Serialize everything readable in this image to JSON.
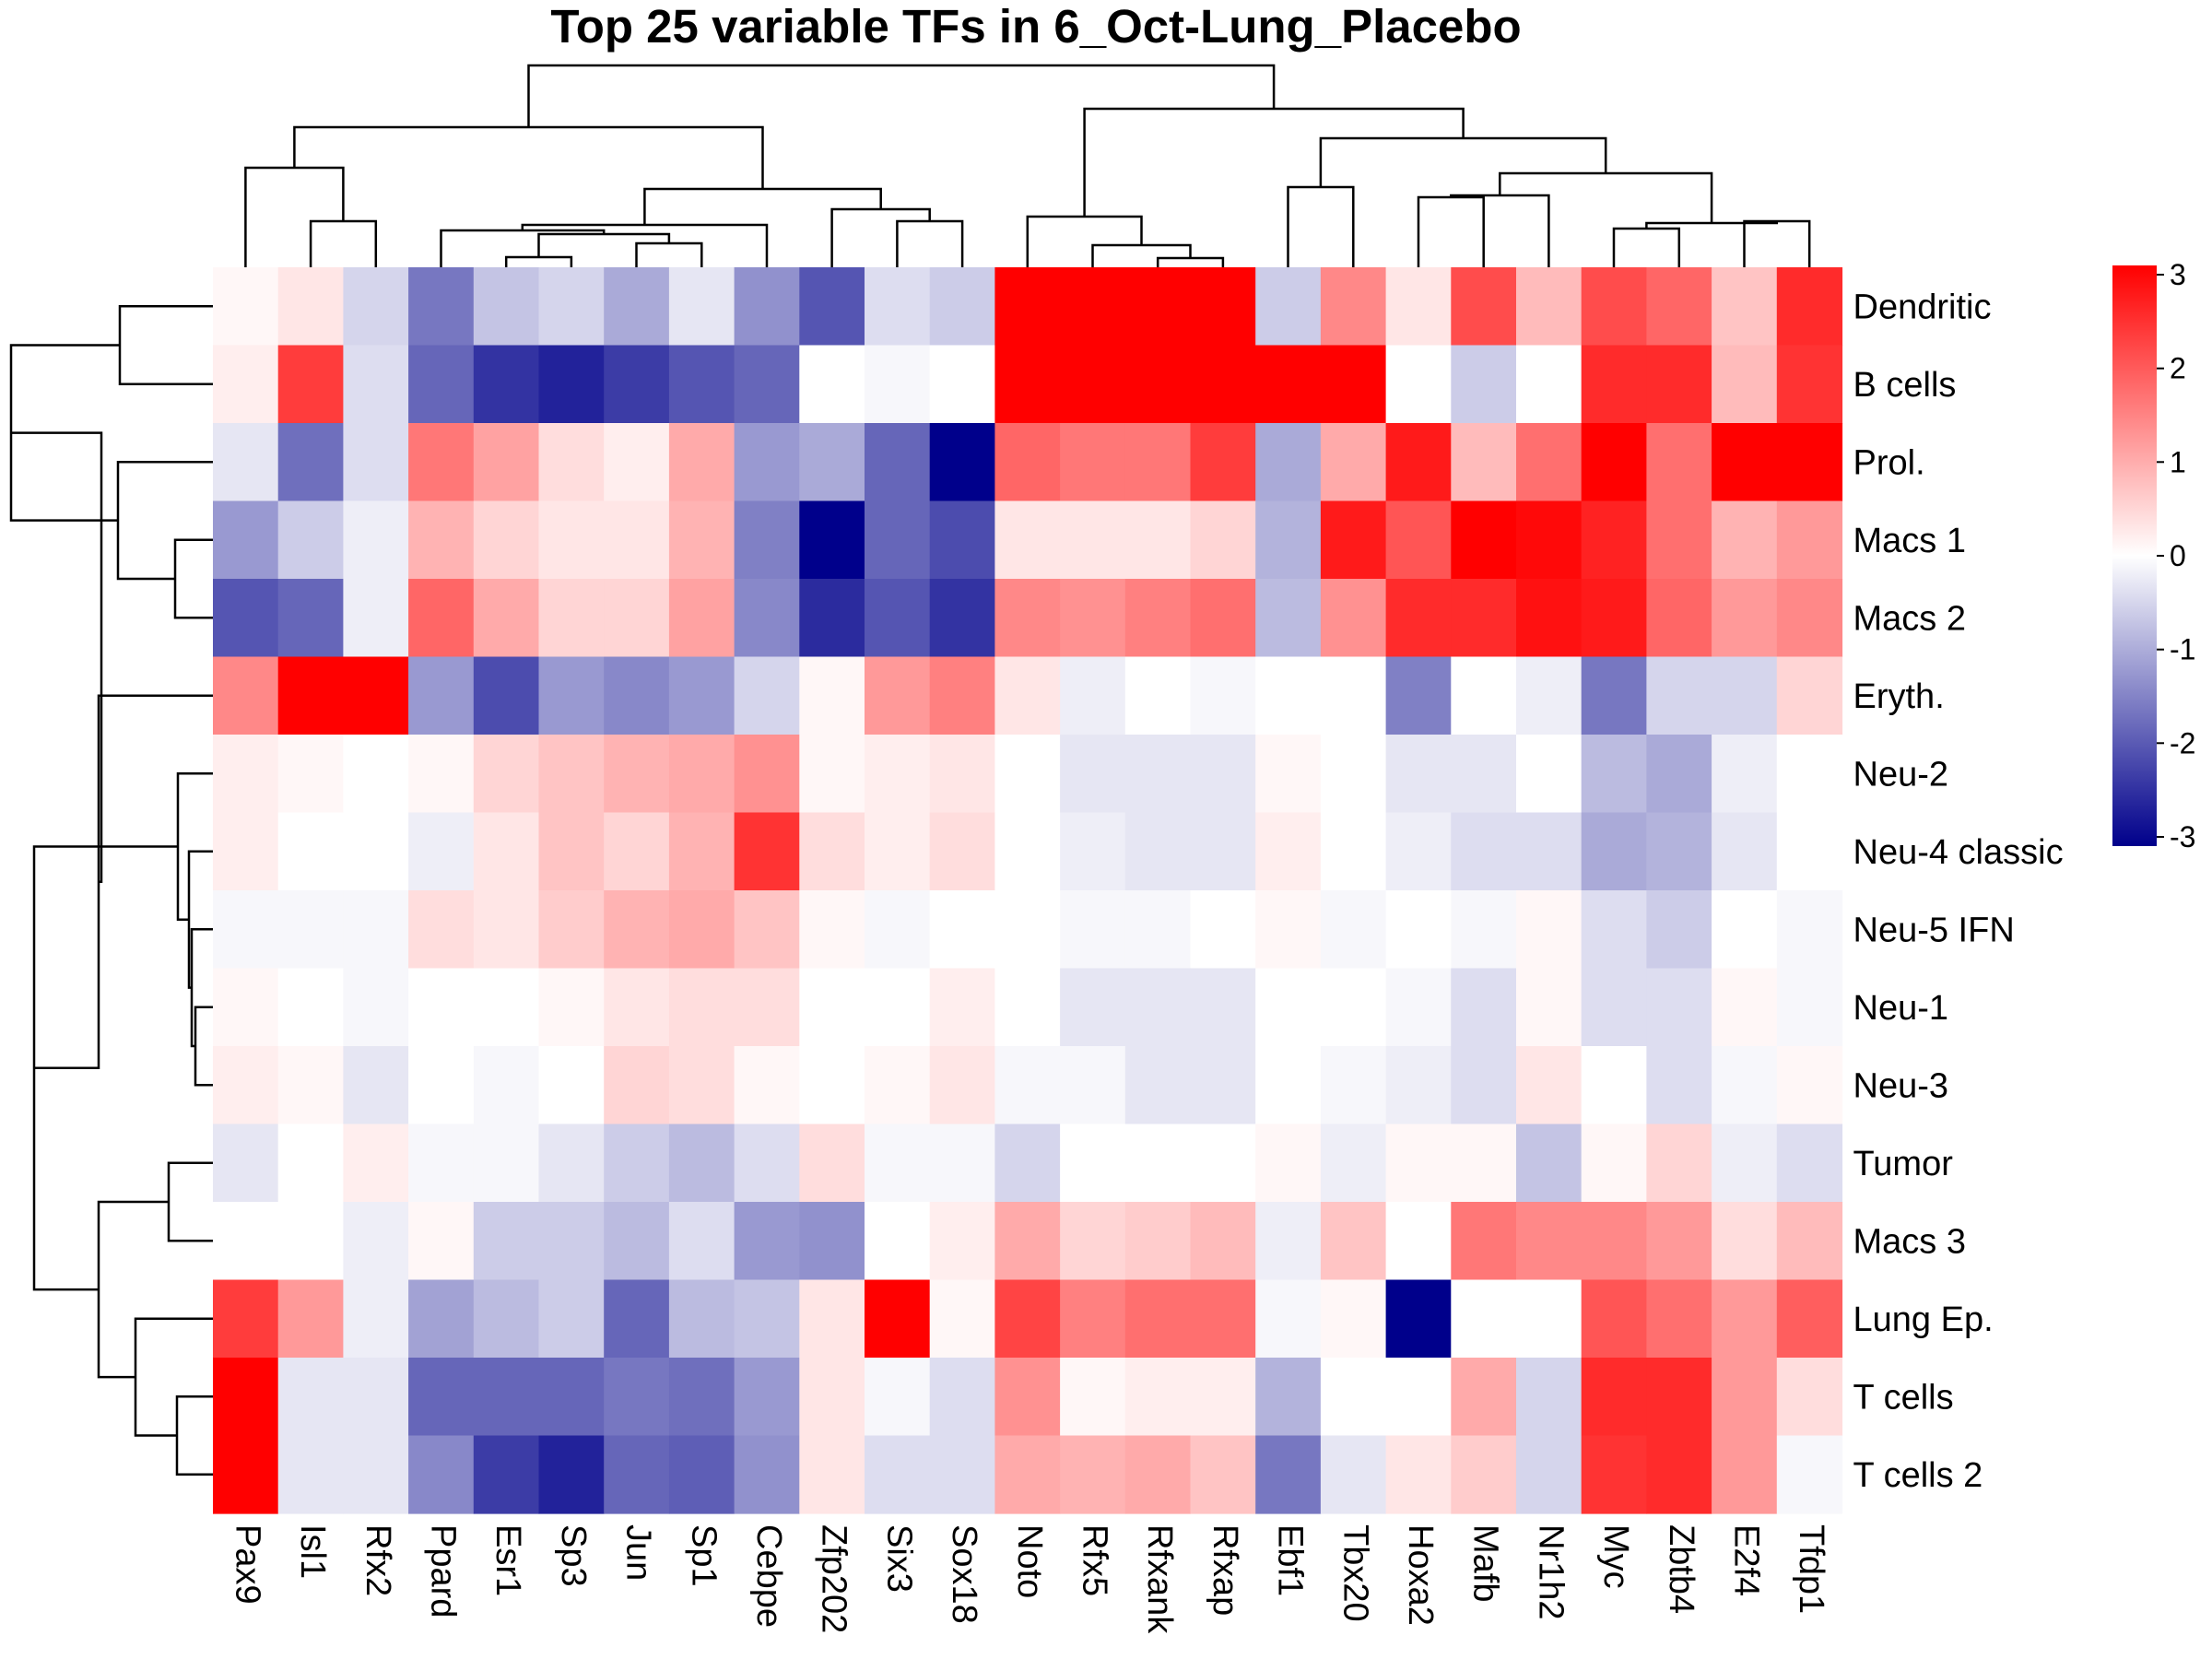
{
  "chart_data": {
    "type": "heatmap",
    "title": "Top 25 variable TFs in 6_Oct-Lung_Placebo",
    "rows": [
      "Dendritic",
      "B cells",
      "Prol.",
      "Macs 1",
      "Macs 2",
      "Eryth.",
      "Neu-2",
      "Neu-4 classic",
      "Neu-5 IFN",
      "Neu-1",
      "Neu-3",
      "Tumor",
      "Macs 3",
      "Lung Ep.",
      "T cells",
      "T cells 2"
    ],
    "columns": [
      "Pax9",
      "Isl1",
      "Rfx2",
      "Ppard",
      "Esr1",
      "Sp3",
      "Jun",
      "Sp1",
      "Cebpe",
      "Zfp202",
      "Six3",
      "Sox18",
      "Noto",
      "Rfx5",
      "Rfxank",
      "Rfxap",
      "Ebf1",
      "Tbx20",
      "Hoxa2",
      "Mafb",
      "Nr1h2",
      "Myc",
      "Zbtb4",
      "E2f4",
      "Tfdp1"
    ],
    "values": [
      [
        0.1,
        0.3,
        -0.5,
        -1.6,
        -0.7,
        -0.5,
        -1.0,
        -0.3,
        -1.3,
        -2.0,
        -0.4,
        -0.6,
        3,
        3,
        3,
        3,
        -0.6,
        1.4,
        0.3,
        2.1,
        0.8,
        2.1,
        1.8,
        0.7,
        2.5
      ],
      [
        0.2,
        2.3,
        -0.4,
        -1.8,
        -2.4,
        -2.6,
        -2.3,
        -2.0,
        -1.8,
        0.0,
        -0.1,
        0.0,
        3,
        3,
        3,
        3,
        3,
        3,
        0.0,
        -0.6,
        0.0,
        2.5,
        2.5,
        0.8,
        2.4
      ],
      [
        -0.3,
        -1.7,
        -0.4,
        1.6,
        1.1,
        0.4,
        0.2,
        1.0,
        -1.2,
        -1.0,
        -1.8,
        -3,
        1.8,
        1.6,
        1.6,
        2.3,
        -1.0,
        1.0,
        2.7,
        0.8,
        1.7,
        3,
        1.7,
        3,
        3
      ],
      [
        -1.2,
        -0.6,
        -0.2,
        0.9,
        0.5,
        0.3,
        0.3,
        0.9,
        -1.5,
        -3,
        -1.8,
        -2.1,
        0.3,
        0.3,
        0.3,
        0.5,
        -0.9,
        2.7,
        2.0,
        3,
        2.9,
        2.6,
        1.7,
        0.9,
        1.2
      ],
      [
        -2.0,
        -1.8,
        -0.2,
        1.8,
        1.0,
        0.5,
        0.5,
        1.1,
        -1.4,
        -2.5,
        -2.0,
        -2.4,
        1.4,
        1.3,
        1.5,
        1.7,
        -0.8,
        1.3,
        2.5,
        2.5,
        2.8,
        2.7,
        1.8,
        1.2,
        1.4
      ],
      [
        1.4,
        3,
        3,
        -1.2,
        -2.1,
        -1.2,
        -1.4,
        -1.2,
        -0.5,
        0.1,
        1.2,
        1.5,
        0.3,
        -0.2,
        0.0,
        -0.1,
        0.0,
        0.0,
        -1.5,
        0.0,
        -0.2,
        -1.6,
        -0.5,
        -0.5,
        0.5
      ],
      [
        0.2,
        0.1,
        0.0,
        0.1,
        0.5,
        0.7,
        0.9,
        1.0,
        1.3,
        0.1,
        0.2,
        0.3,
        0.0,
        -0.3,
        -0.3,
        -0.3,
        0.1,
        0.0,
        -0.3,
        -0.3,
        0.0,
        -0.8,
        -1.0,
        -0.2,
        0.0
      ],
      [
        0.2,
        0.0,
        0.0,
        -0.2,
        0.3,
        0.7,
        0.5,
        0.9,
        2.4,
        0.4,
        0.2,
        0.4,
        0.0,
        -0.2,
        -0.3,
        -0.3,
        0.2,
        0.0,
        -0.2,
        -0.4,
        -0.4,
        -1.0,
        -0.9,
        -0.3,
        0.0
      ],
      [
        -0.1,
        -0.1,
        -0.1,
        0.4,
        0.3,
        0.6,
        0.9,
        1.0,
        0.7,
        0.1,
        -0.1,
        0.0,
        0.0,
        -0.1,
        -0.1,
        0.0,
        0.1,
        -0.1,
        0.0,
        -0.1,
        0.1,
        -0.4,
        -0.6,
        0.0,
        -0.1
      ],
      [
        0.1,
        0.0,
        -0.1,
        0.0,
        0.0,
        0.1,
        0.3,
        0.4,
        0.4,
        0.0,
        0.0,
        0.2,
        0.0,
        -0.3,
        -0.3,
        -0.3,
        0.0,
        0.0,
        -0.1,
        -0.4,
        0.1,
        -0.4,
        -0.4,
        0.1,
        -0.1
      ],
      [
        0.2,
        0.1,
        -0.3,
        0.0,
        -0.1,
        0.0,
        0.5,
        0.4,
        0.1,
        0.0,
        0.1,
        0.3,
        -0.1,
        -0.1,
        -0.3,
        -0.3,
        0.0,
        -0.1,
        -0.2,
        -0.4,
        0.3,
        0.0,
        -0.4,
        -0.1,
        0.1
      ],
      [
        -0.3,
        0.0,
        0.2,
        -0.1,
        -0.1,
        -0.3,
        -0.6,
        -0.8,
        -0.4,
        0.4,
        -0.1,
        -0.1,
        -0.5,
        0.0,
        0.0,
        0.0,
        0.1,
        -0.2,
        0.1,
        0.1,
        -0.7,
        0.1,
        0.5,
        -0.2,
        -0.4
      ],
      [
        0.0,
        0.0,
        -0.2,
        0.1,
        -0.6,
        -0.6,
        -0.8,
        -0.4,
        -1.2,
        -1.3,
        0.0,
        0.2,
        1.0,
        0.5,
        0.6,
        0.8,
        -0.2,
        0.7,
        0.0,
        1.6,
        1.4,
        1.4,
        1.2,
        0.4,
        0.8
      ],
      [
        2.3,
        1.2,
        -0.2,
        -1.1,
        -0.8,
        -0.6,
        -1.8,
        -0.8,
        -0.7,
        0.3,
        3,
        0.1,
        2.2,
        1.5,
        1.7,
        1.7,
        -0.1,
        0.1,
        -3,
        0.0,
        0.0,
        2.0,
        1.7,
        1.2,
        1.9
      ],
      [
        3,
        -0.3,
        -0.3,
        -1.8,
        -1.8,
        -1.8,
        -1.6,
        -1.7,
        -1.2,
        0.3,
        -0.1,
        -0.4,
        1.3,
        0.1,
        0.2,
        0.2,
        -0.9,
        0.0,
        0.0,
        1.0,
        -0.5,
        2.5,
        2.5,
        1.2,
        0.4
      ],
      [
        3,
        -0.3,
        -0.3,
        -1.4,
        -2.3,
        -2.6,
        -1.8,
        -1.9,
        -1.3,
        0.3,
        -0.4,
        -0.4,
        1.0,
        0.9,
        1.0,
        0.7,
        -1.6,
        -0.3,
        0.3,
        0.6,
        -0.5,
        2.4,
        2.5,
        1.2,
        -0.1
      ]
    ],
    "color_scale": {
      "min": -3,
      "max": 3,
      "low": "#00008b",
      "mid": "#ffffff",
      "high": "#ff0000"
    },
    "legend_ticks": [
      "3",
      "2",
      "1",
      "0",
      "-1",
      "-2",
      "-3"
    ],
    "legend_placement": "right",
    "dendrograms": {
      "rows": true,
      "columns": true
    }
  }
}
